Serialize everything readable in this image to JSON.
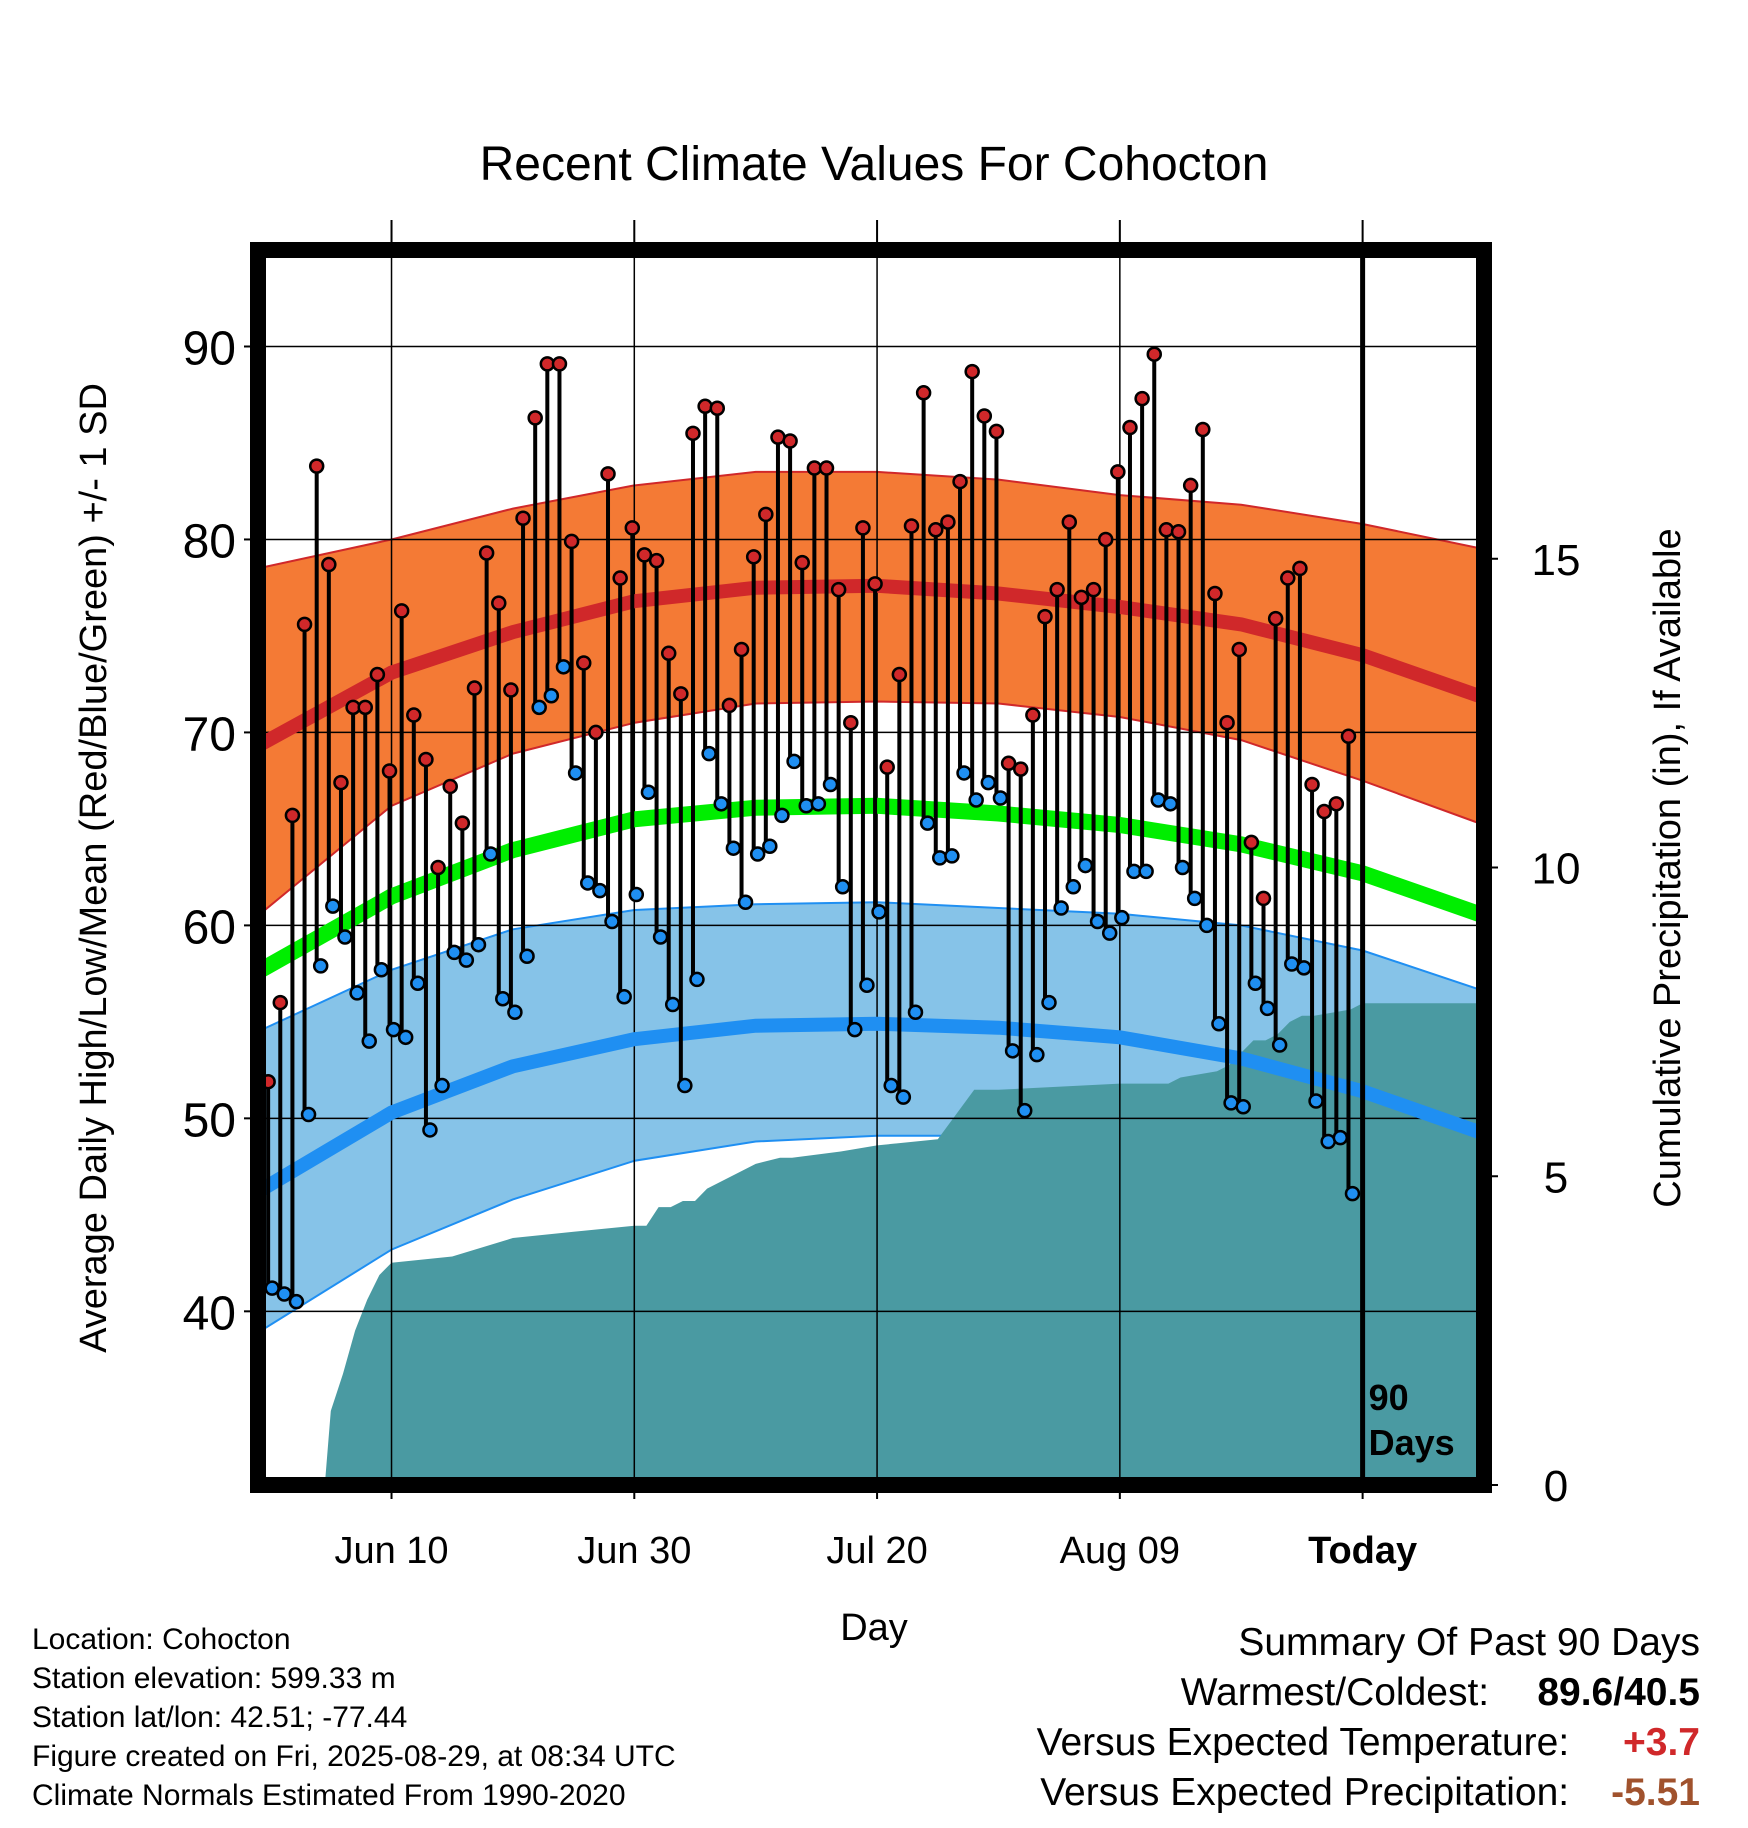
{
  "chart_data": {
    "type": "line",
    "title": "Recent Climate Values For Cohocton",
    "xlabel": "Day",
    "ylabel": "Average Daily High/Low/Mean (Red/Blue/Green) +/- 1 SD",
    "y2label": "Cumulative Precipitation (in), If Available",
    "ylim": [
      31,
      95
    ],
    "y2lim": [
      0,
      20
    ],
    "xlim": [
      -11,
      90
    ],
    "x_ticks": [
      {
        "day": 0,
        "label": "Jun 10"
      },
      {
        "day": 20,
        "label": "Jun 30"
      },
      {
        "day": 40,
        "label": "Jul 20"
      },
      {
        "day": 60,
        "label": "Aug 09"
      },
      {
        "day": 80,
        "label": "Today"
      }
    ],
    "y_ticks": [
      40,
      50,
      60,
      70,
      80,
      90
    ],
    "y2_ticks": [
      0,
      5,
      10,
      15
    ],
    "grid": true,
    "today_marker": {
      "day": 80,
      "label_line1": "90",
      "label_line2": "Days"
    },
    "normals": {
      "day": [
        -11,
        0,
        10,
        20,
        30,
        40,
        50,
        60,
        70,
        80,
        90
      ],
      "high_mean": [
        69.3,
        73.1,
        75.2,
        76.8,
        77.5,
        77.6,
        77.2,
        76.5,
        75.6,
        74.0,
        71.8
      ],
      "high_sd_upper": [
        78.5,
        80.0,
        81.6,
        82.8,
        83.5,
        83.5,
        83.1,
        82.3,
        81.8,
        80.8,
        79.5
      ],
      "high_sd_lower": [
        60.5,
        66.2,
        68.9,
        70.5,
        71.5,
        71.6,
        71.5,
        70.8,
        69.6,
        67.5,
        65.2
      ],
      "mean": [
        57.6,
        61.5,
        63.9,
        65.5,
        66.1,
        66.2,
        65.8,
        65.2,
        64.2,
        62.7,
        60.5
      ],
      "low_mean": [
        46.2,
        50.3,
        52.7,
        54.1,
        54.8,
        54.9,
        54.7,
        54.2,
        53.1,
        51.4,
        49.2
      ],
      "low_sd_upper": [
        54.5,
        57.7,
        59.8,
        60.8,
        61.1,
        61.2,
        60.9,
        60.6,
        60.0,
        58.7,
        56.6
      ],
      "low_sd_lower": [
        38.9,
        43.2,
        45.8,
        47.8,
        48.8,
        49.1,
        49.1,
        48.8,
        47.8,
        45.8,
        42.6
      ]
    },
    "series": [
      {
        "name": "Daily High",
        "start_day": -10,
        "values": [
          51.9,
          56.0,
          65.7,
          75.6,
          83.8,
          78.7,
          67.4,
          71.3,
          71.3,
          73.0,
          68.0,
          76.3,
          70.9,
          68.6,
          63.0,
          67.2,
          65.3,
          72.3,
          79.3,
          76.7,
          72.2,
          81.1,
          86.3,
          89.1,
          89.1,
          79.9,
          73.6,
          70.0,
          83.4,
          78.0,
          80.6,
          79.2,
          78.9,
          74.1,
          72.0,
          85.5,
          86.9,
          86.8,
          71.4,
          74.3,
          79.1,
          81.3,
          85.3,
          85.1,
          78.8,
          83.7,
          83.7,
          77.4,
          70.5,
          80.6,
          77.7,
          68.2,
          73.0,
          80.7,
          87.6,
          80.5,
          80.9,
          83.0,
          88.7,
          86.4,
          85.6,
          68.4,
          68.1,
          70.9,
          76.0,
          77.4,
          80.9,
          77.0,
          77.4,
          80.0,
          83.5,
          85.8,
          87.3,
          89.6,
          80.5,
          80.4,
          82.8,
          85.7,
          77.2,
          70.5,
          74.3,
          64.3,
          61.4,
          75.9,
          78.0,
          78.5,
          67.3,
          65.9,
          66.3,
          69.8
        ]
      },
      {
        "name": "Daily Low",
        "start_day": -10,
        "values": [
          41.2,
          40.9,
          40.5,
          50.2,
          57.9,
          61.0,
          59.4,
          56.5,
          54.0,
          57.7,
          54.6,
          54.2,
          57.0,
          49.4,
          51.7,
          58.6,
          58.2,
          59.0,
          63.7,
          56.2,
          55.5,
          58.4,
          71.3,
          71.9,
          73.4,
          67.9,
          62.2,
          61.8,
          60.2,
          56.3,
          61.6,
          66.9,
          59.4,
          55.9,
          51.7,
          57.2,
          68.9,
          66.3,
          64.0,
          61.2,
          63.7,
          64.1,
          65.7,
          68.5,
          66.2,
          66.3,
          67.3,
          62.0,
          54.6,
          56.9,
          60.7,
          51.7,
          51.1,
          55.5,
          65.3,
          63.5,
          63.6,
          67.9,
          66.5,
          67.4,
          66.6,
          53.5,
          50.4,
          53.3,
          56.0,
          60.9,
          62.0,
          63.1,
          60.2,
          59.6,
          60.4,
          62.8,
          62.8,
          66.5,
          66.3,
          63.0,
          61.4,
          60.0,
          54.9,
          50.8,
          50.6,
          57.0,
          55.7,
          53.8,
          58.0,
          57.8,
          50.9,
          48.8,
          49.0,
          46.1
        ]
      },
      {
        "name": "Cumulative Precipitation",
        "day": [
          -11,
          -5.5,
          -5,
          -4,
          -3,
          -2,
          -1,
          0,
          5,
          10,
          15,
          20,
          21,
          22,
          23,
          24,
          25,
          26,
          28,
          30,
          32,
          33,
          37,
          40,
          45,
          48,
          49,
          50,
          60,
          64,
          65,
          68,
          69,
          70,
          71,
          72,
          73,
          74,
          75,
          76,
          79,
          80,
          90
        ],
        "values": [
          0,
          0,
          1.2,
          1.8,
          2.5,
          3.0,
          3.4,
          3.6,
          3.7,
          4.0,
          4.1,
          4.2,
          4.2,
          4.5,
          4.5,
          4.6,
          4.6,
          4.8,
          5.0,
          5.2,
          5.3,
          5.3,
          5.4,
          5.5,
          5.6,
          6.4,
          6.4,
          6.4,
          6.5,
          6.5,
          6.6,
          6.7,
          6.8,
          7.0,
          7.2,
          7.2,
          7.3,
          7.5,
          7.6,
          7.6,
          7.7,
          7.8,
          7.8
        ]
      }
    ]
  },
  "footer": {
    "location": "Location: Cohocton",
    "elevation": "Station elevation: 599.33 m",
    "latlon": "Station lat/lon: 42.51; -77.44",
    "created": "Figure created on Fri, 2025-08-29, at 08:34 UTC",
    "normals": "Climate Normals Estimated From 1990-2020"
  },
  "summary": {
    "title": "Summary Of Past 90 Days",
    "warmest_coldest_label": "Warmest/Coldest:",
    "warmest_coldest_value": "89.6/40.5",
    "temp_label": "Versus Expected Temperature:",
    "temp_value": "+3.7",
    "precip_label": "Versus Expected Precipitation:",
    "precip_value": "-5.51"
  },
  "colors": {
    "high_band": "#f47a35",
    "high_line": "#d0282a",
    "mean_line": "#00ee00",
    "low_band": "#86c3e8",
    "low_line": "#1f8ff2",
    "precip": "#4a9aa2",
    "high_point": "#d0282a",
    "low_point": "#1f8ff2",
    "temp_value": "#d0282a",
    "precip_value": "#a0522d"
  }
}
